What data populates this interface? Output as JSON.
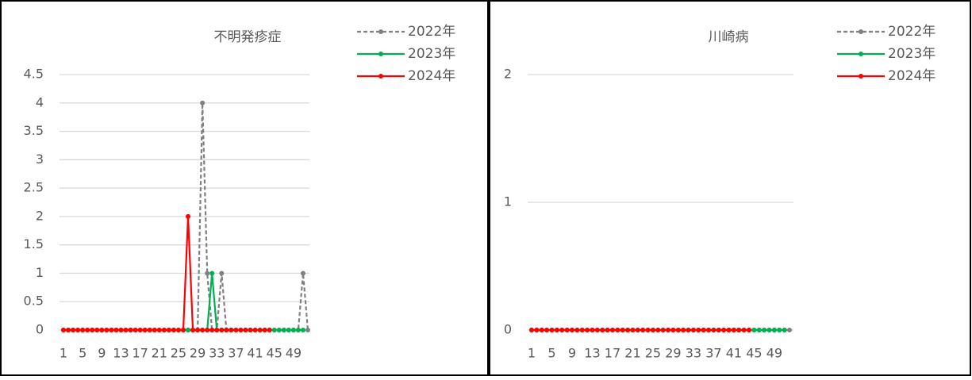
{
  "chart_data": [
    {
      "type": "line",
      "title": "不明発疹症",
      "categories": [
        "1",
        null,
        null,
        null,
        "5",
        null,
        null,
        null,
        "9",
        null,
        null,
        null,
        "13",
        null,
        null,
        null,
        "17",
        null,
        null,
        null,
        "21",
        null,
        null,
        null,
        "25",
        null,
        null,
        null,
        "29",
        null,
        null,
        null,
        "33",
        null,
        null,
        null,
        "37",
        null,
        null,
        null,
        "41",
        null,
        null,
        null,
        "45",
        null,
        null,
        null,
        "49",
        null,
        null,
        null
      ],
      "ylim": [
        0,
        4.5
      ],
      "yticks": [
        0,
        0.5,
        1,
        1.5,
        2,
        2.5,
        3,
        3.5,
        4,
        4.5
      ],
      "grid": true,
      "series": [
        {
          "name": "2022年",
          "color": "#808080",
          "dashed": true,
          "values": [
            0,
            0,
            0,
            0,
            0,
            0,
            0,
            0,
            0,
            0,
            0,
            0,
            0,
            0,
            0,
            0,
            0,
            0,
            0,
            0,
            0,
            0,
            0,
            0,
            0,
            0,
            0,
            0,
            0,
            4,
            1,
            0,
            0,
            1,
            0,
            0,
            0,
            0,
            0,
            0,
            0,
            0,
            0,
            0,
            0,
            0,
            0,
            0,
            0,
            0,
            1,
            0
          ]
        },
        {
          "name": "2023年",
          "color": "#00b050",
          "dashed": false,
          "values": [
            0,
            0,
            0,
            0,
            0,
            0,
            0,
            0,
            0,
            0,
            0,
            0,
            0,
            0,
            0,
            0,
            0,
            0,
            0,
            0,
            0,
            0,
            0,
            0,
            0,
            0,
            0,
            0,
            0,
            0,
            0,
            1,
            0,
            0,
            0,
            0,
            0,
            0,
            0,
            0,
            0,
            0,
            0,
            0,
            0,
            0,
            0,
            0,
            0,
            0,
            0,
            null
          ]
        },
        {
          "name": "2024年",
          "color": "#ff0000",
          "dashed": false,
          "values": [
            0,
            0,
            0,
            0,
            0,
            0,
            0,
            0,
            0,
            0,
            0,
            0,
            0,
            0,
            0,
            0,
            0,
            0,
            0,
            0,
            0,
            0,
            0,
            0,
            0,
            0,
            2,
            0,
            0,
            0,
            0,
            0,
            0,
            0,
            0,
            0,
            0,
            0,
            0,
            0,
            0,
            0,
            0,
            0,
            null,
            null,
            null,
            null,
            null,
            null,
            null,
            null
          ]
        }
      ]
    },
    {
      "type": "line",
      "title": "川崎病",
      "categories": [
        "1",
        null,
        null,
        null,
        "5",
        null,
        null,
        null,
        "9",
        null,
        null,
        null,
        "13",
        null,
        null,
        null,
        "17",
        null,
        null,
        null,
        "21",
        null,
        null,
        null,
        "25",
        null,
        null,
        null,
        "29",
        null,
        null,
        null,
        "33",
        null,
        null,
        null,
        "37",
        null,
        null,
        null,
        "41",
        null,
        null,
        null,
        "45",
        null,
        null,
        null,
        "49",
        null,
        null,
        null
      ],
      "ylim": [
        0,
        2
      ],
      "yticks": [
        0,
        1,
        2
      ],
      "grid": true,
      "series": [
        {
          "name": "2022年",
          "color": "#808080",
          "dashed": true,
          "values": [
            0,
            0,
            0,
            0,
            0,
            0,
            0,
            0,
            0,
            0,
            0,
            0,
            0,
            0,
            0,
            0,
            0,
            0,
            0,
            0,
            0,
            0,
            0,
            0,
            0,
            0,
            0,
            0,
            0,
            0,
            0,
            0,
            0,
            0,
            0,
            0,
            0,
            0,
            0,
            0,
            0,
            0,
            0,
            0,
            0,
            0,
            0,
            0,
            0,
            0,
            0,
            0
          ]
        },
        {
          "name": "2023年",
          "color": "#00b050",
          "dashed": false,
          "values": [
            0,
            0,
            0,
            0,
            0,
            0,
            0,
            0,
            0,
            0,
            0,
            0,
            0,
            0,
            0,
            0,
            0,
            0,
            0,
            0,
            0,
            0,
            0,
            0,
            0,
            0,
            0,
            0,
            0,
            0,
            0,
            0,
            0,
            0,
            0,
            0,
            0,
            0,
            0,
            0,
            0,
            0,
            0,
            0,
            0,
            0,
            0,
            0,
            0,
            0,
            0,
            null
          ]
        },
        {
          "name": "2024年",
          "color": "#ff0000",
          "dashed": false,
          "values": [
            0,
            0,
            0,
            0,
            0,
            0,
            0,
            0,
            0,
            0,
            0,
            0,
            0,
            0,
            0,
            0,
            0,
            0,
            0,
            0,
            0,
            0,
            0,
            0,
            0,
            0,
            0,
            0,
            0,
            0,
            0,
            0,
            0,
            0,
            0,
            0,
            0,
            0,
            0,
            0,
            0,
            0,
            0,
            0,
            null,
            null,
            null,
            null,
            null,
            null,
            null,
            null
          ]
        }
      ]
    }
  ]
}
